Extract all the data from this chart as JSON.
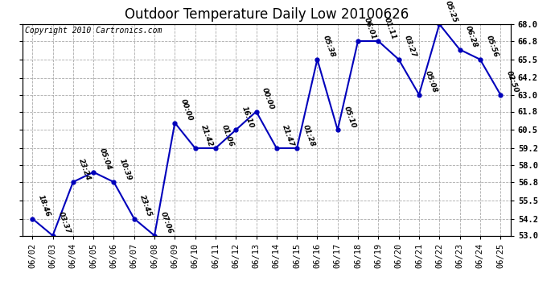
{
  "title": "Outdoor Temperature Daily Low 20100626",
  "copyright": "Copyright 2010 Cartronics.com",
  "x_labels": [
    "06/02",
    "06/03",
    "06/04",
    "06/05",
    "06/06",
    "06/07",
    "06/08",
    "06/09",
    "06/10",
    "06/11",
    "06/12",
    "06/13",
    "06/14",
    "06/15",
    "06/16",
    "06/17",
    "06/18",
    "06/19",
    "06/20",
    "06/21",
    "06/22",
    "06/23",
    "06/24",
    "06/25"
  ],
  "y_values": [
    54.2,
    53.0,
    56.8,
    57.5,
    56.8,
    54.2,
    53.0,
    61.0,
    59.2,
    59.2,
    60.5,
    61.8,
    59.2,
    59.2,
    65.5,
    60.5,
    66.8,
    66.8,
    65.5,
    63.0,
    68.0,
    66.2,
    65.5,
    63.0
  ],
  "point_labels": [
    "18:46",
    "03:37",
    "23:24",
    "05:04",
    "10:39",
    "23:45",
    "07:06",
    "00:00",
    "21:42",
    "01:06",
    "16:10",
    "00:00",
    "21:47",
    "01:28",
    "05:38",
    "05:10",
    "06:01",
    "01:11",
    "03:27",
    "05:08",
    "05:25",
    "06:28",
    "05:56",
    "02:50"
  ],
  "ylim": [
    53.0,
    68.0
  ],
  "yticks": [
    53.0,
    54.2,
    55.5,
    56.8,
    58.0,
    59.2,
    60.5,
    61.8,
    63.0,
    64.2,
    65.5,
    66.8,
    68.0
  ],
  "line_color": "#0000bb",
  "marker_color": "#0000bb",
  "bg_color": "#ffffff",
  "plot_bg_color": "#ffffff",
  "grid_color": "#aaaaaa",
  "title_fontsize": 12,
  "label_fontsize": 7.5,
  "copyright_fontsize": 7,
  "annot_fontsize": 6.5
}
